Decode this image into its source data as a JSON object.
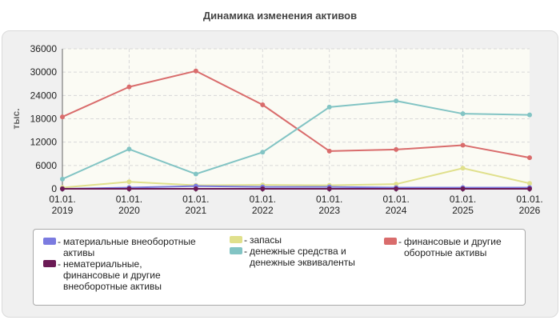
{
  "chart_data": {
    "type": "line",
    "title": "Динамика изменения активов",
    "ylabel": "тыс.",
    "xlabel": "",
    "ylim": [
      0,
      36000
    ],
    "yticks": [
      "0",
      "6000",
      "12000",
      "18000",
      "24000",
      "30000",
      "36000"
    ],
    "categories": [
      "01.01.\n2019",
      "01.01.\n2020",
      "01.01.\n2021",
      "01.01.\n2022",
      "01.01.\n2023",
      "01.01.\n2024",
      "01.01.\n2025",
      "01.01.\n2026"
    ],
    "grid": true,
    "legend_position": "bottom",
    "series": [
      {
        "name": "материальные внеоборотные активы",
        "color": "#7b7be0",
        "values": [
          0,
          300,
          700,
          500,
          500,
          300,
          300,
          300
        ]
      },
      {
        "name": "нематериальные, финансовые и другие внеоборотные активы",
        "color": "#6b1a55",
        "values": [
          0,
          0,
          0,
          0,
          0,
          0,
          0,
          0
        ]
      },
      {
        "name": "запасы",
        "color": "#e0e08c",
        "values": [
          300,
          1800,
          900,
          1000,
          900,
          1200,
          5300,
          1400
        ]
      },
      {
        "name": "денежные средства и денежные эквиваленты",
        "color": "#82c4c4",
        "values": [
          2500,
          10200,
          3800,
          9400,
          21000,
          22600,
          19300,
          19000
        ]
      },
      {
        "name": "финансовые и другие оборотные активы",
        "color": "#d96c6c",
        "values": [
          18500,
          26200,
          30300,
          21600,
          9700,
          10100,
          11200,
          8000
        ]
      }
    ]
  },
  "legend": {
    "items": [
      {
        "lines": [
          "материальные внеоборотные",
          "активы"
        ],
        "color": "#7b7be0"
      },
      {
        "lines": [
          "нематериальные,",
          "финансовые и другие",
          "внеоборотные активы"
        ],
        "color": "#6b1a55"
      },
      {
        "lines": [
          "запасы"
        ],
        "color": "#e0e08c"
      },
      {
        "lines": [
          "денежные средства и",
          "денежные эквиваленты"
        ],
        "color": "#82c4c4"
      },
      {
        "lines": [
          "финансовые и другие",
          "оборотные активы"
        ],
        "color": "#d96c6c"
      }
    ]
  }
}
